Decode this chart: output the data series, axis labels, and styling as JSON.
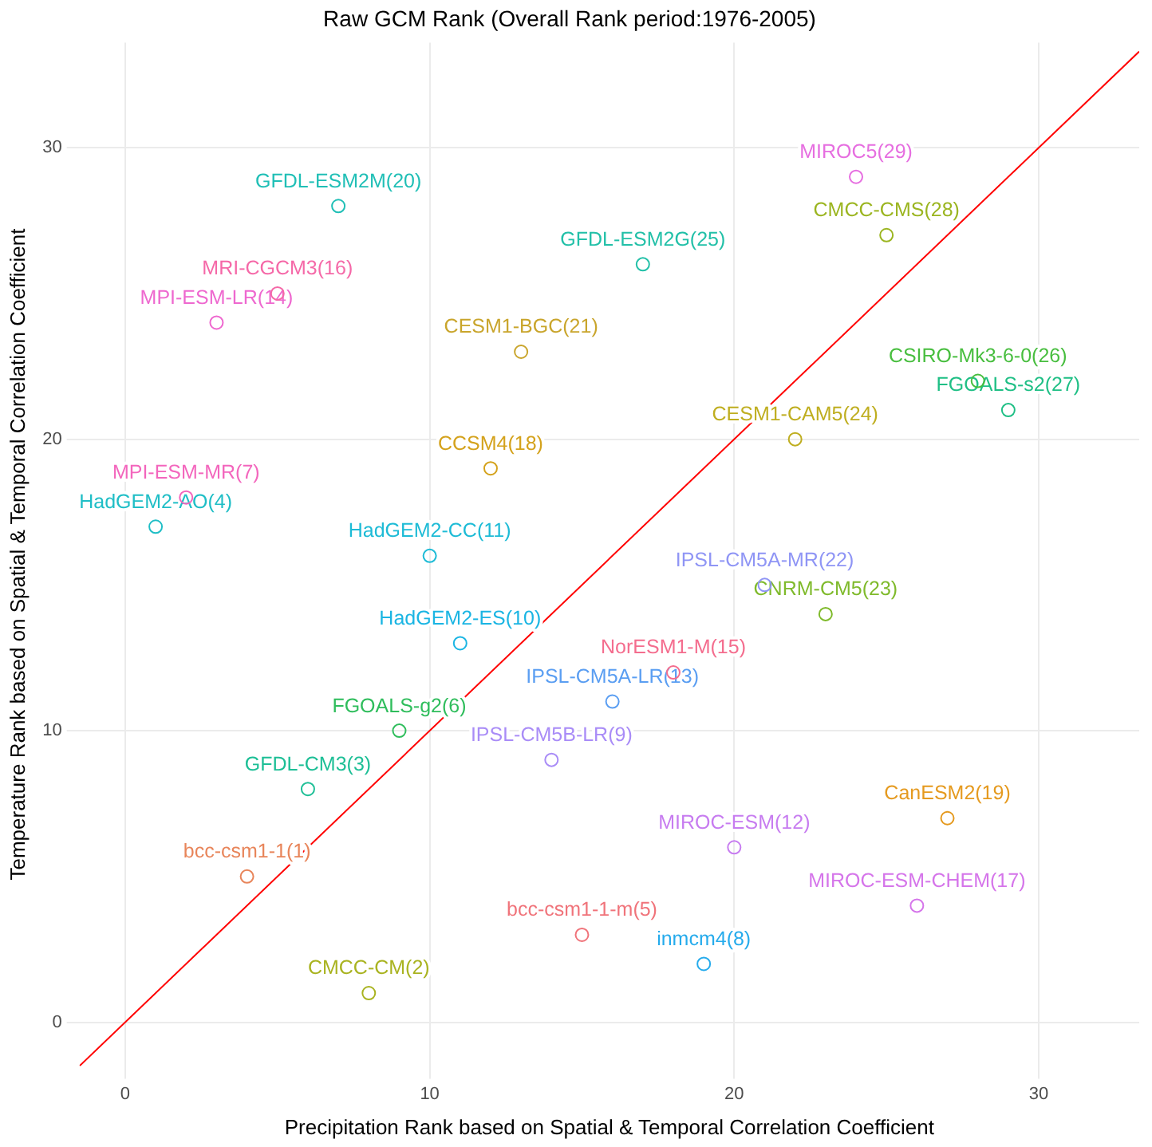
{
  "chart_data": {
    "type": "scatter",
    "title": "Raw GCM Rank (Overall Rank period:1976-2005)",
    "xlabel": "Precipitation Rank based on Spatial & Temporal Correlation Coefficient",
    "ylabel": "Temperature Rank based on Spatial & Temporal Correlation Coefficient",
    "xlim": [
      -1.5,
      33.3
    ],
    "ylim": [
      -1.5,
      33.6
    ],
    "xticks": [
      0,
      10,
      20,
      30
    ],
    "yticks": [
      0,
      10,
      20,
      30
    ],
    "grid": true,
    "legend": false,
    "marker": "circle",
    "series": [
      {
        "name": "MIROC5(29)",
        "color": "#e66ee0",
        "x": [
          24
        ],
        "values": [
          29
        ]
      },
      {
        "name": "CMCC-CMS(28)",
        "color": "#9bb520",
        "x": [
          25
        ],
        "values": [
          27
        ]
      },
      {
        "name": "GFDL-ESM2M(20)",
        "color": "#20bfb6",
        "x": [
          7
        ],
        "values": [
          28
        ]
      },
      {
        "name": "GFDL-ESM2G(25)",
        "color": "#22c0a8",
        "x": [
          17
        ],
        "values": [
          26
        ]
      },
      {
        "name": "MRI-CGCM3(16)",
        "color": "#f569a8",
        "x": [
          5
        ],
        "values": [
          25
        ]
      },
      {
        "name": "MPI-ESM-LR(14)",
        "color": "#ee68cf",
        "x": [
          3
        ],
        "values": [
          24
        ]
      },
      {
        "name": "CESM1-BGC(21)",
        "color": "#c9a52c",
        "x": [
          13
        ],
        "values": [
          23
        ]
      },
      {
        "name": "CSIRO-Mk3-6-0(26)",
        "color": "#48be3f",
        "x": [
          28
        ],
        "values": [
          22
        ]
      },
      {
        "name": "FGOALS-s2(27)",
        "color": "#1fbf85",
        "x": [
          29
        ],
        "values": [
          21
        ]
      },
      {
        "name": "CESM1-CAM5(24)",
        "color": "#bfae20",
        "x": [
          22
        ],
        "values": [
          20
        ]
      },
      {
        "name": "CCSM4(18)",
        "color": "#d4a21c",
        "x": [
          12
        ],
        "values": [
          19
        ]
      },
      {
        "name": "MPI-ESM-MR(7)",
        "color": "#f366bd",
        "x": [
          2
        ],
        "values": [
          18
        ]
      },
      {
        "name": "HadGEM2-AO(4)",
        "color": "#1fbec6",
        "x": [
          1
        ],
        "values": [
          17
        ]
      },
      {
        "name": "HadGEM2-CC(11)",
        "color": "#1dbbd6",
        "x": [
          10
        ],
        "values": [
          16
        ]
      },
      {
        "name": "IPSL-CM5A-MR(22)",
        "color": "#8f95f5",
        "x": [
          21
        ],
        "values": [
          15
        ]
      },
      {
        "name": "CNRM-CM5(23)",
        "color": "#7fba2b",
        "x": [
          23
        ],
        "values": [
          14
        ]
      },
      {
        "name": "HadGEM2-ES(10)",
        "color": "#1ab5e3",
        "x": [
          11
        ],
        "values": [
          13
        ]
      },
      {
        "name": "NorESM1-M(15)",
        "color": "#f46d8e",
        "x": [
          18
        ],
        "values": [
          12
        ]
      },
      {
        "name": "IPSL-CM5A-LR(13)",
        "color": "#5a9ef2",
        "x": [
          16
        ],
        "values": [
          11
        ]
      },
      {
        "name": "FGOALS-g2(6)",
        "color": "#2fbd5c",
        "x": [
          9
        ],
        "values": [
          10
        ]
      },
      {
        "name": "IPSL-CM5B-LR(9)",
        "color": "#a98cf7",
        "x": [
          14
        ],
        "values": [
          9
        ]
      },
      {
        "name": "GFDL-CM3(3)",
        "color": "#1dbf96",
        "x": [
          6
        ],
        "values": [
          8
        ]
      },
      {
        "name": "CanESM2(19)",
        "color": "#e59a1f",
        "x": [
          27
        ],
        "values": [
          7
        ]
      },
      {
        "name": "MIROC-ESM(12)",
        "color": "#c77cf0",
        "x": [
          20
        ],
        "values": [
          6
        ]
      },
      {
        "name": "bcc-csm1-1(1)",
        "color": "#e8855a",
        "x": [
          4
        ],
        "values": [
          5
        ]
      },
      {
        "name": "MIROC-ESM-CHEM(17)",
        "color": "#d575ea",
        "x": [
          26
        ],
        "values": [
          4
        ]
      },
      {
        "name": "bcc-csm1-1-m(5)",
        "color": "#f0737a",
        "x": [
          15
        ],
        "values": [
          3
        ]
      },
      {
        "name": "inmcm4(8)",
        "color": "#25abec",
        "x": [
          19
        ],
        "values": [
          2
        ]
      },
      {
        "name": "CMCC-CM(2)",
        "color": "#a9b320",
        "x": [
          8
        ],
        "values": [
          1
        ]
      },
      {
        "type": "line",
        "marker": "none",
        "color": "#ff0000",
        "x": [
          -1.5,
          33.3
        ],
        "values": [
          -1.5,
          33.3
        ]
      }
    ]
  }
}
